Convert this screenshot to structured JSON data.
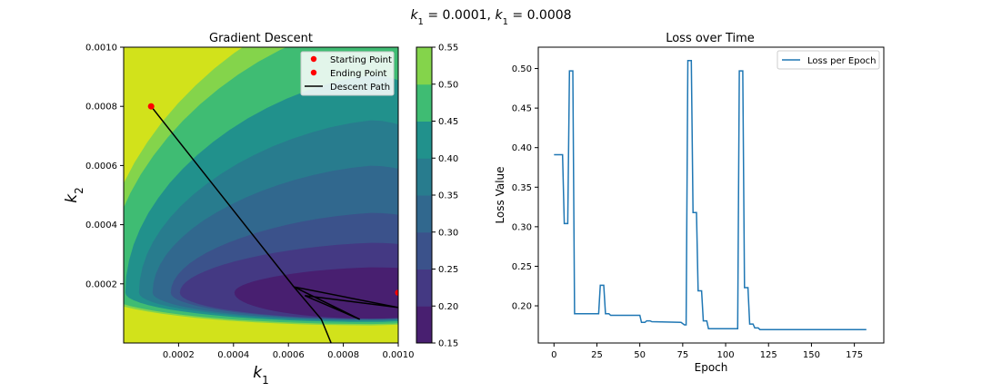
{
  "figure": {
    "suptitle": "k1 = 0.0001, k1 = 0.0008",
    "suptitle_parts": [
      {
        "text": "k",
        "italic": true
      },
      {
        "text": "1",
        "sub": true
      },
      {
        "text": " =  0.0001, "
      },
      {
        "text": "k",
        "italic": true
      },
      {
        "text": "1",
        "sub": true
      },
      {
        "text": " =  0.0008"
      }
    ]
  },
  "chart_data": [
    {
      "type": "heatmap",
      "subtype": "filled-contour",
      "title": "Gradient Descent",
      "xlabel": "k1",
      "ylabel": "k2",
      "xlim": [
        0.0,
        0.001
      ],
      "ylim": [
        0.0,
        0.001
      ],
      "xticks": [
        "0.0002",
        "0.0004",
        "0.0006",
        "0.0008",
        "0.0010"
      ],
      "yticks": [
        "0.0002",
        "0.0004",
        "0.0006",
        "0.0008",
        "0.0010"
      ],
      "colorbar": {
        "levels": [
          0.15,
          0.2,
          0.25,
          0.3,
          0.35,
          0.4,
          0.45,
          0.5,
          0.55
        ],
        "ticks": [
          "0.15",
          "0.20",
          "0.25",
          "0.30",
          "0.35",
          "0.40",
          "0.45",
          "0.50",
          "0.55"
        ],
        "colors": [
          "#481f70",
          "#443983",
          "#3b528b",
          "#31688e",
          "#287c8e",
          "#21918c",
          "#3fbc73",
          "#84d44b",
          "#d2e21b"
        ]
      },
      "contour_min": {
        "k1": 0.0009,
        "k2": 0.00017
      },
      "start_point": {
        "k1": 0.0001,
        "k2": 0.0008
      },
      "end_point": {
        "k1": 0.001,
        "k2": 0.00017
      },
      "descent_path": [
        {
          "k1": 0.0001,
          "k2": 0.0008
        },
        {
          "k1": 0.00062,
          "k2": 0.00019
        },
        {
          "k1": 0.00086,
          "k2": 8e-05
        },
        {
          "k1": 0.00066,
          "k2": 0.00016
        },
        {
          "k1": 0.001,
          "k2": 0.00012
        },
        {
          "k1": 0.00062,
          "k2": 0.00019
        },
        {
          "k1": 0.00072,
          "k2": 8e-05
        },
        {
          "k1": 0.0008,
          "k2": -0.0001
        }
      ],
      "legend": {
        "position": "upper right",
        "entries": [
          {
            "label": "Starting Point",
            "marker": "dot",
            "color": "#ff0000"
          },
          {
            "label": "Ending Point",
            "marker": "dot",
            "color": "#ff0000"
          },
          {
            "label": "Descent Path",
            "marker": "line",
            "color": "#000000"
          }
        ]
      }
    },
    {
      "type": "line",
      "title": "Loss over Time",
      "xlabel": "Epoch",
      "ylabel": "Loss Value",
      "xlim": [
        -9.15,
        192.15
      ],
      "ylim": [
        0.153,
        0.527
      ],
      "xticks": [
        0,
        25,
        50,
        75,
        100,
        125,
        150,
        175
      ],
      "yticks": [
        0.2,
        0.25,
        0.3,
        0.35,
        0.4,
        0.45,
        0.5
      ],
      "ytick_labels": [
        "0.20",
        "0.25",
        "0.30",
        "0.35",
        "0.40",
        "0.45",
        "0.50"
      ],
      "legend": {
        "position": "upper right"
      },
      "series": [
        {
          "name": "Loss per Epoch",
          "color": "#1f77b4",
          "points": [
            [
              0,
              0.391
            ],
            [
              5,
              0.391
            ],
            [
              6,
              0.304
            ],
            [
              8,
              0.304
            ],
            [
              9,
              0.497
            ],
            [
              11,
              0.497
            ],
            [
              12,
              0.19
            ],
            [
              26,
              0.19
            ],
            [
              27,
              0.226
            ],
            [
              29,
              0.226
            ],
            [
              30,
              0.19
            ],
            [
              32,
              0.19
            ],
            [
              33,
              0.188
            ],
            [
              50,
              0.188
            ],
            [
              51,
              0.179
            ],
            [
              53,
              0.179
            ],
            [
              54,
              0.181
            ],
            [
              56,
              0.181
            ],
            [
              57,
              0.18
            ],
            [
              74,
              0.179
            ],
            [
              76,
              0.176
            ],
            [
              77,
              0.176
            ],
            [
              78,
              0.51
            ],
            [
              80,
              0.51
            ],
            [
              81,
              0.318
            ],
            [
              83,
              0.318
            ],
            [
              84,
              0.219
            ],
            [
              86,
              0.219
            ],
            [
              87,
              0.181
            ],
            [
              89,
              0.181
            ],
            [
              90,
              0.171
            ],
            [
              107,
              0.171
            ],
            [
              108,
              0.497
            ],
            [
              110,
              0.497
            ],
            [
              111,
              0.223
            ],
            [
              113,
              0.223
            ],
            [
              114,
              0.177
            ],
            [
              116,
              0.177
            ],
            [
              117,
              0.172
            ],
            [
              119,
              0.172
            ],
            [
              120,
              0.17
            ],
            [
              182,
              0.17
            ]
          ]
        }
      ]
    }
  ]
}
